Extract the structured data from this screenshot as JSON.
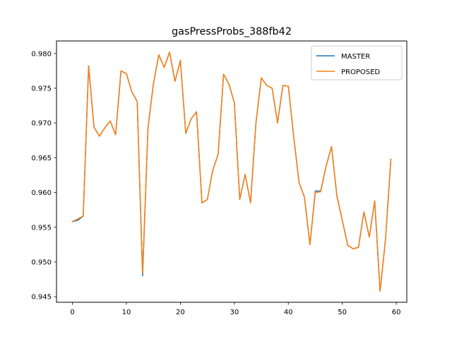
{
  "chart_data": {
    "type": "line",
    "title": "gasPressProbs_388fb42",
    "xlabel": "",
    "ylabel": "",
    "xlim": [
      -2.95,
      61.95
    ],
    "ylim": [
      0.9442,
      0.9818
    ],
    "xticks": [
      0,
      10,
      20,
      30,
      40,
      50,
      60
    ],
    "xtick_labels": [
      "0",
      "10",
      "20",
      "30",
      "40",
      "50",
      "60"
    ],
    "yticks": [
      0.945,
      0.95,
      0.955,
      0.96,
      0.965,
      0.97,
      0.975,
      0.98
    ],
    "ytick_labels": [
      "0.945",
      "0.950",
      "0.955",
      "0.960",
      "0.965",
      "0.970",
      "0.975",
      "0.980"
    ],
    "grid": false,
    "legend_position": "top-right",
    "x": [
      0,
      1,
      2,
      3,
      4,
      5,
      6,
      7,
      8,
      9,
      10,
      11,
      12,
      13,
      14,
      15,
      16,
      17,
      18,
      19,
      20,
      21,
      22,
      23,
      24,
      25,
      26,
      27,
      28,
      29,
      30,
      31,
      32,
      33,
      34,
      35,
      36,
      37,
      38,
      39,
      40,
      41,
      42,
      43,
      44,
      45,
      46,
      47,
      48,
      49,
      50,
      51,
      52,
      53,
      54,
      55,
      56,
      57,
      58,
      59
    ],
    "series": [
      {
        "name": "MASTER",
        "color": "#1f77b4",
        "values": [
          0.9558,
          0.956,
          0.9566,
          0.9782,
          0.9694,
          0.9681,
          0.9693,
          0.9703,
          0.9683,
          0.9775,
          0.9771,
          0.9745,
          0.9731,
          0.948,
          0.9693,
          0.9756,
          0.9798,
          0.978,
          0.9802,
          0.976,
          0.979,
          0.9685,
          0.9706,
          0.9716,
          0.9585,
          0.959,
          0.9632,
          0.9655,
          0.977,
          0.9756,
          0.9729,
          0.959,
          0.9626,
          0.9585,
          0.97,
          0.9765,
          0.9754,
          0.975,
          0.97,
          0.9754,
          0.9753,
          0.968,
          0.9614,
          0.9593,
          0.9525,
          0.9602,
          0.9602,
          0.9638,
          0.9666,
          0.9595,
          0.956,
          0.9524,
          0.9519,
          0.9521,
          0.9572,
          0.9536,
          0.9588,
          0.9458,
          0.9532,
          0.9648
        ]
      },
      {
        "name": "PROPOSED",
        "color": "#ff7f0e",
        "values": [
          0.9558,
          0.9562,
          0.9566,
          0.9782,
          0.9694,
          0.9681,
          0.9693,
          0.9703,
          0.9683,
          0.9775,
          0.9771,
          0.9745,
          0.9731,
          0.9484,
          0.9693,
          0.9756,
          0.9798,
          0.978,
          0.9802,
          0.976,
          0.979,
          0.9685,
          0.9706,
          0.9716,
          0.9585,
          0.959,
          0.9632,
          0.9655,
          0.977,
          0.9756,
          0.9729,
          0.959,
          0.9626,
          0.9585,
          0.97,
          0.9765,
          0.9754,
          0.975,
          0.97,
          0.9754,
          0.9753,
          0.968,
          0.9614,
          0.9593,
          0.9525,
          0.96,
          0.9601,
          0.9638,
          0.9666,
          0.9595,
          0.956,
          0.9524,
          0.9519,
          0.9521,
          0.9572,
          0.9536,
          0.9588,
          0.9458,
          0.9532,
          0.9648
        ]
      }
    ]
  }
}
